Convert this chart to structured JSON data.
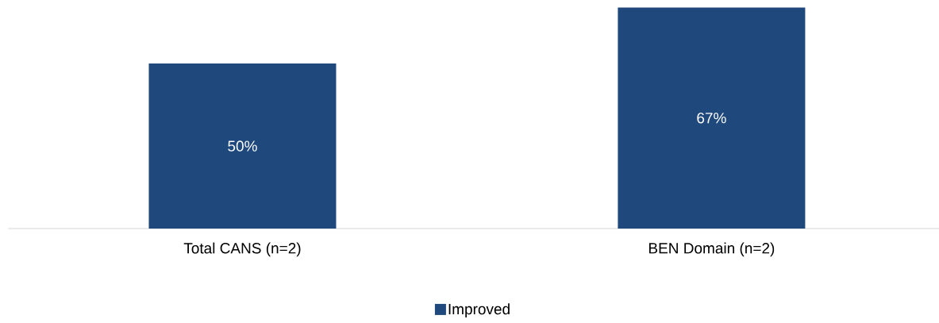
{
  "chart_data": {
    "type": "bar",
    "categories": [
      "Total CANS (n=2)",
      "BEN Domain (n=2)"
    ],
    "series": [
      {
        "name": "Improved",
        "color": "#1f497d",
        "values": [
          50,
          67
        ],
        "value_labels": [
          "50%",
          "67%"
        ]
      }
    ],
    "legend": "bottom"
  }
}
